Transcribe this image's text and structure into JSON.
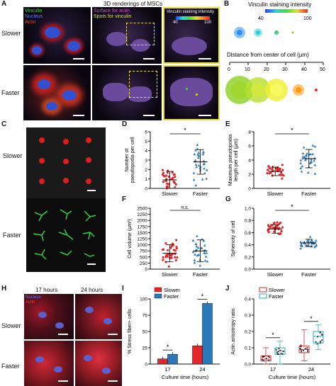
{
  "panels": {
    "A": "A",
    "B": "B",
    "C": "C",
    "D": "D",
    "E": "E",
    "F": "F",
    "G": "G",
    "H": "H",
    "I": "I",
    "J": "J"
  },
  "rows": {
    "slower": "Slower",
    "faster": "Faster"
  },
  "panelA": {
    "legend": [
      "Vinculin",
      "Nucleus",
      "Actin"
    ],
    "legend_colors": [
      "#38e038",
      "#5a7cff",
      "#ff3030"
    ],
    "header": "3D renderings of MSCs",
    "overlay1": "Surface for actin",
    "overlay2": "Spots for vinculin",
    "inset_title": "Vinculin staining intensity",
    "inset_min": "40",
    "inset_max": "100"
  },
  "panelB": {
    "title": "Vinculin staining intensity",
    "scale_min": "40",
    "scale_max": "100",
    "axis_label": "Distance from center of cell (µm)",
    "ticks": [
      "0",
      "10",
      "20",
      "30",
      "40",
      "50"
    ]
  },
  "panelH": {
    "t1": "17 hours",
    "t2": "24 hours",
    "legend": [
      "Nucleus",
      "Actin"
    ]
  },
  "chart_data": [
    {
      "panel": "D",
      "type": "scatter",
      "categories": [
        "Slower",
        "Faster"
      ],
      "ylabel": "Number of pseudopodia per cell",
      "ylim": [
        0,
        6
      ],
      "yticks": [
        0,
        1,
        2,
        3,
        4,
        5,
        6
      ],
      "series": [
        {
          "name": "Slower",
          "mean": 0.9,
          "sd": 0.9
        },
        {
          "name": "Faster",
          "mean": 2.8,
          "sd": 1.3
        }
      ],
      "significance": "*"
    },
    {
      "panel": "E",
      "type": "scatter",
      "categories": [
        "Slower",
        "Faster"
      ],
      "ylabel": "Maximum pseudopodia length per cell (µm)",
      "ylim": [
        0,
        8
      ],
      "yticks": [
        0,
        2,
        4,
        6,
        8
      ],
      "series": [
        {
          "name": "Slower",
          "mean": 2.4,
          "sd": 0.6
        },
        {
          "name": "Faster",
          "mean": 4.2,
          "sd": 1.3
        }
      ],
      "significance": "*"
    },
    {
      "panel": "F",
      "type": "scatter",
      "categories": [
        "Slower",
        "Faster"
      ],
      "ylabel": "Cell volume (µm³)",
      "ylim": [
        0,
        2500
      ],
      "yticks": [
        0,
        250,
        500,
        750,
        1000,
        1250,
        1500,
        1750,
        2000,
        2250,
        2500
      ],
      "series": [
        {
          "name": "Slower",
          "mean": 650,
          "sd": 350
        },
        {
          "name": "Faster",
          "mean": 750,
          "sd": 450
        }
      ],
      "significance": "n.s."
    },
    {
      "panel": "G",
      "type": "scatter",
      "categories": [
        "Slower",
        "Faster"
      ],
      "ylabel": "Sphericity of cell",
      "ylim": [
        0,
        1.0
      ],
      "yticks": [
        0.0,
        0.2,
        0.4,
        0.6,
        0.8,
        1.0
      ],
      "series": [
        {
          "name": "Slower",
          "mean": 0.66,
          "sd": 0.07
        },
        {
          "name": "Faster",
          "mean": 0.43,
          "sd": 0.06
        }
      ],
      "significance": "*"
    },
    {
      "panel": "I",
      "type": "bar",
      "categories": [
        "17",
        "24"
      ],
      "xlabel": "Culture time (hours)",
      "ylabel": "% Stress fiber+ cells",
      "ylim": [
        0,
        100
      ],
      "yticks": [
        0,
        25,
        50,
        75,
        100
      ],
      "series": [
        {
          "name": "Slower",
          "values": [
            8,
            28
          ],
          "color": "#e3262b"
        },
        {
          "name": "Faster",
          "values": [
            15,
            93
          ],
          "color": "#2a78b8"
        }
      ],
      "significance": [
        "*",
        "*"
      ]
    },
    {
      "panel": "J",
      "type": "box",
      "categories": [
        "17",
        "24"
      ],
      "xlabel": "Culture time (hours)",
      "ylabel": "Actin anisotropy ratio",
      "ylim": [
        0,
        0.4
      ],
      "yticks": [
        0.0,
        0.1,
        0.2,
        0.3,
        0.4
      ],
      "series": [
        {
          "name": "Slower",
          "color": "#e3262b",
          "boxes": [
            {
              "min": 0.0,
              "q1": 0.02,
              "median": 0.03,
              "q3": 0.05,
              "max": 0.1
            },
            {
              "min": 0.02,
              "q1": 0.07,
              "median": 0.09,
              "q3": 0.11,
              "max": 0.21
            }
          ]
        },
        {
          "name": "Faster",
          "color": "#2aa8b8",
          "boxes": [
            {
              "min": 0.0,
              "q1": 0.06,
              "median": 0.08,
              "q3": 0.1,
              "max": 0.14
            },
            {
              "min": 0.09,
              "q1": 0.13,
              "median": 0.17,
              "q3": 0.2,
              "max": 0.24
            }
          ]
        }
      ],
      "significance": [
        "*",
        "*"
      ]
    }
  ]
}
